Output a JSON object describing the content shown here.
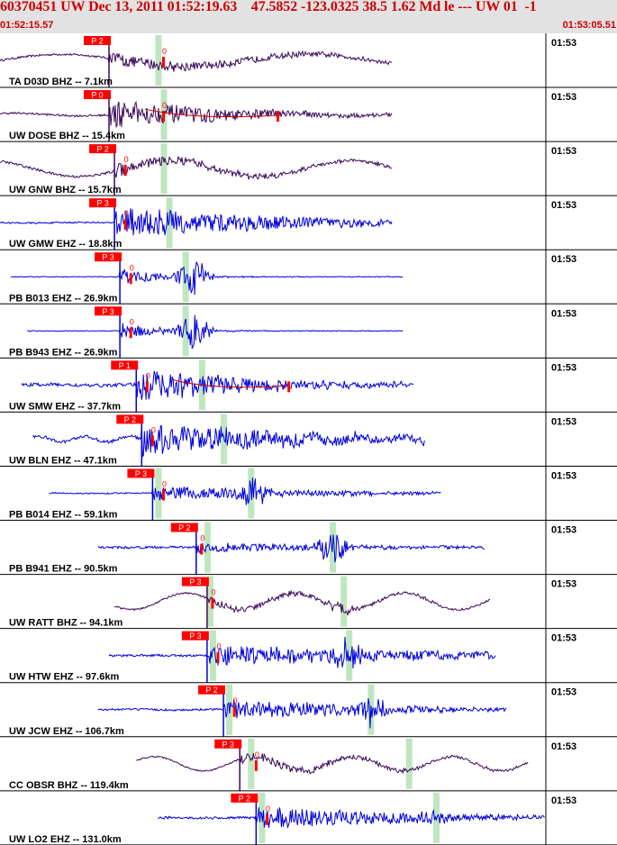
{
  "header": {
    "title": "60370451 UW Dec 13, 2011 01:52:19.63    47.5852 -123.0325 38.5 1.62 Md le --- UW 01  -1",
    "time_start": "01:52:15.57",
    "time_end": "01:53:05.51"
  },
  "colors": {
    "header_bg": "#e2e2e2",
    "header_text": "#cc0000",
    "trace_dark": "#3a0a5a",
    "trace_blue": "#0000dd",
    "pick_box": "#ff0000",
    "pick_text": "#ffffff",
    "window_band": "#bfe6bf",
    "synthetic_line": "#cc0000"
  },
  "chart_data": {
    "type": "line",
    "title": "60370451 UW Dec 13, 2011 01:52:19.63    47.5852 -123.0325 38.5 1.62 Md le --- UW 01  -1",
    "x_range": [
      "01:52:15.57",
      "01:53:05.51"
    ],
    "minute_label": "01:53",
    "series": [
      {
        "name": "TA D03D BHZ -- 7.1km",
        "color": "dark",
        "span": [
          0.0,
          0.72
        ],
        "pick_label": "P 2",
        "pick_x": 0.2,
        "flag_x": 0.3,
        "green": [
          0.29
        ],
        "onset": 0.2,
        "base_amp": 0.55,
        "base_freq": 2.2,
        "noise": 0.08,
        "quake_amp": 0.35,
        "decay": 0.35,
        "burst": null
      },
      {
        "name": "UW DOSE BHZ -- 15.4km",
        "color": "dark",
        "span": [
          0.0,
          0.72
        ],
        "pick_label": "P 0",
        "pick_x": 0.2,
        "flag_x": 0.3,
        "green": [
          0.3
        ],
        "onset": 0.2,
        "base_amp": 0.12,
        "base_freq": 4.0,
        "noise": 0.08,
        "quake_amp": 0.75,
        "decay": 0.22,
        "burst": null,
        "extra_flag": 0.51
      },
      {
        "name": "UW GNW BHZ -- 15.7km",
        "color": "dark",
        "span": [
          0.0,
          0.72
        ],
        "pick_label": "P 2",
        "pick_x": 0.21,
        "flag_x": 0.23,
        "green": [
          0.3
        ],
        "onset": 0.21,
        "base_amp": 0.72,
        "base_freq": 3.0,
        "noise": 0.1,
        "quake_amp": 0.35,
        "decay": 0.25,
        "burst": null
      },
      {
        "name": "UW GMW EHZ -- 18.8km",
        "color": "blue",
        "span": [
          0.0,
          0.72
        ],
        "pick_label": "P 3",
        "pick_x": 0.21,
        "flag_x": 0.23,
        "green": [
          0.31
        ],
        "onset": 0.21,
        "base_amp": 0.03,
        "base_freq": 5.0,
        "noise": 0.06,
        "quake_amp": 0.9,
        "decay": 0.3,
        "burst": null
      },
      {
        "name": "PB B013 EHZ -- 26.9km",
        "color": "blue",
        "span": [
          0.02,
          0.74
        ],
        "pick_label": "P 3",
        "pick_x": 0.22,
        "flag_x": 0.24,
        "green": [
          0.34
        ],
        "onset": 0.22,
        "base_amp": 0.0,
        "base_freq": 1.0,
        "noise": 0.03,
        "quake_amp": 0.45,
        "decay": 0.08,
        "burst": [
          0.355,
          0.9
        ]
      },
      {
        "name": "PB B943 EHZ -- 26.9km",
        "color": "blue",
        "span": [
          0.05,
          0.74
        ],
        "pick_label": "P 3",
        "pick_x": 0.22,
        "flag_x": 0.24,
        "green": [
          0.34
        ],
        "onset": 0.22,
        "base_amp": 0.0,
        "base_freq": 1.0,
        "noise": 0.03,
        "quake_amp": 0.45,
        "decay": 0.08,
        "burst": [
          0.355,
          0.9
        ]
      },
      {
        "name": "UW SMW EHZ -- 37.7km",
        "color": "blue",
        "span": [
          0.04,
          0.76
        ],
        "pick_label": "P 1",
        "pick_x": 0.25,
        "flag_x": 0.27,
        "green": [
          0.37
        ],
        "onset": 0.25,
        "base_amp": 0.05,
        "base_freq": 6.0,
        "noise": 0.14,
        "quake_amp": 0.9,
        "decay": 0.22,
        "burst": null,
        "extra_flag": 0.53
      },
      {
        "name": "UW BLN EHZ -- 47.1km",
        "color": "blue",
        "span": [
          0.06,
          0.78
        ],
        "pick_label": "P 2",
        "pick_x": 0.26,
        "flag_x": 0.28,
        "green": [
          0.41
        ],
        "onset": 0.26,
        "base_amp": 0.25,
        "base_freq": 12.0,
        "noise": 0.12,
        "quake_amp": 0.85,
        "decay": 0.3,
        "burst": null
      },
      {
        "name": "PB B014 EHZ -- 59.1km",
        "color": "blue",
        "span": [
          0.09,
          0.81
        ],
        "pick_label": "P 3",
        "pick_x": 0.28,
        "flag_x": 0.3,
        "green": [
          0.29,
          0.46
        ],
        "onset": 0.28,
        "base_amp": 0.02,
        "base_freq": 6.0,
        "noise": 0.05,
        "quake_amp": 0.4,
        "decay": 0.3,
        "burst": [
          0.46,
          0.75
        ]
      },
      {
        "name": "PB B941 EHZ -- 90.5km",
        "color": "blue",
        "span": [
          0.18,
          0.89
        ],
        "pick_label": "P 2",
        "pick_x": 0.36,
        "flag_x": 0.37,
        "green": [
          0.38,
          0.61
        ],
        "onset": 0.36,
        "base_amp": 0.02,
        "base_freq": 6.0,
        "noise": 0.09,
        "quake_amp": 0.25,
        "decay": 0.3,
        "burst": [
          0.61,
          0.85
        ]
      },
      {
        "name": "UW RATT BHZ -- 94.1km",
        "color": "dark",
        "span": [
          0.21,
          0.9
        ],
        "pick_label": "P 3",
        "pick_x": 0.38,
        "flag_x": 0.39,
        "green": [
          0.385,
          0.63
        ],
        "onset": 0.38,
        "base_amp": 0.75,
        "base_freq": 5.0,
        "noise": 0.07,
        "quake_amp": 0.2,
        "decay": 0.3,
        "burst": [
          0.63,
          0.25
        ]
      },
      {
        "name": "UW HTW EHZ -- 97.6km",
        "color": "blue",
        "span": [
          0.2,
          0.91
        ],
        "pick_label": "P 3",
        "pick_x": 0.38,
        "flag_x": 0.4,
        "green": [
          0.39,
          0.64
        ],
        "onset": 0.385,
        "base_amp": 0.02,
        "base_freq": 6.0,
        "noise": 0.09,
        "quake_amp": 0.55,
        "decay": 0.5,
        "burst": [
          0.64,
          0.75
        ]
      },
      {
        "name": "UW JCW EHZ -- 106.7km",
        "color": "blue",
        "span": [
          0.18,
          0.93
        ],
        "pick_label": "P 2",
        "pick_x": 0.41,
        "flag_x": 0.43,
        "green": [
          0.42,
          0.68
        ],
        "onset": 0.41,
        "base_amp": 0.03,
        "base_freq": 6.0,
        "noise": 0.08,
        "quake_amp": 0.55,
        "decay": 0.3,
        "burst": [
          0.68,
          0.75
        ]
      },
      {
        "name": "CC OBSR BHZ -- 119.4km",
        "color": "dark",
        "span": [
          0.25,
          0.97
        ],
        "pick_label": "P 3",
        "pick_x": 0.44,
        "flag_x": 0.47,
        "green": [
          0.46,
          0.75
        ],
        "onset": 0.44,
        "base_amp": 0.65,
        "base_freq": 5.5,
        "noise": 0.06,
        "quake_amp": 0.25,
        "decay": 0.3,
        "burst": null
      },
      {
        "name": "UW LO2 EHZ -- 131.0km",
        "color": "blue",
        "span": [
          0.29,
          1.0
        ],
        "pick_label": "P 2",
        "pick_x": 0.47,
        "flag_x": 0.49,
        "green": [
          0.48,
          0.8
        ],
        "onset": 0.47,
        "base_amp": 0.02,
        "base_freq": 6.0,
        "noise": 0.1,
        "quake_amp": 0.6,
        "decay": 0.3,
        "burst": [
          0.8,
          0.3
        ]
      }
    ]
  }
}
